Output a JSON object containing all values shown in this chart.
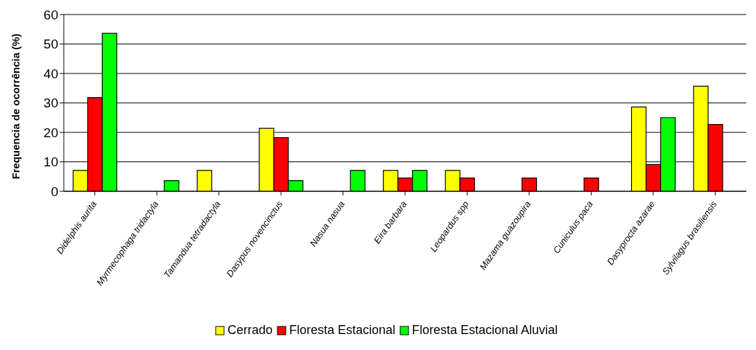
{
  "chart_data": {
    "type": "bar",
    "ylabel": "Frequencia de ocorrência (%)",
    "categories": [
      "Didelphis aurita",
      "Myrmecophaga tridactyla",
      "Tamandua tetradactyla",
      "Dasypus novencinctus",
      "Nasua nasua",
      "Eira barbara",
      "Leopardus spp",
      "Mazama guazoupira",
      "Cuniculus paca",
      "Dasyprocta azarae",
      "Sylvilagus brasiliensis"
    ],
    "series": [
      {
        "name": "Cerrado",
        "color": "#ffff00",
        "values": [
          7.1,
          0,
          7.1,
          21.4,
          0,
          7.1,
          7.1,
          0,
          0,
          28.6,
          35.7
        ]
      },
      {
        "name": "Floresta Estacional",
        "color": "#ff0000",
        "values": [
          31.8,
          0,
          0,
          18.2,
          0,
          4.5,
          4.5,
          4.5,
          4.5,
          9.1,
          22.7
        ]
      },
      {
        "name": "Floresta Estacional Aluvial",
        "color": "#00ff00",
        "values": [
          53.6,
          3.6,
          0,
          3.6,
          7.1,
          7.1,
          0,
          0,
          0,
          25,
          0
        ]
      }
    ],
    "ylim": [
      0,
      60
    ],
    "yticks": [
      0,
      10,
      20,
      30,
      40,
      50,
      60
    ],
    "grid": "y",
    "legend": "bottom"
  }
}
